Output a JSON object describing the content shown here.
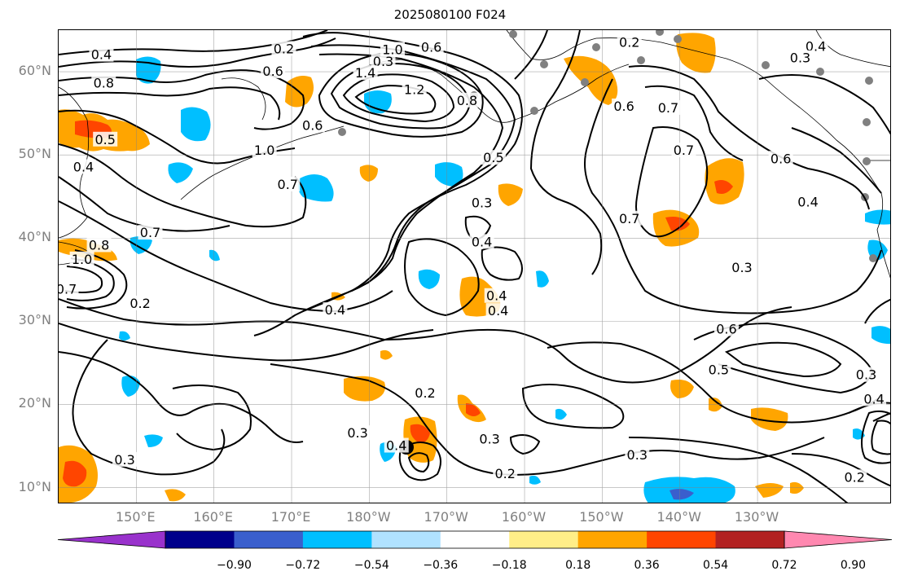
{
  "title": "2025080100 F024",
  "lat_labels": [
    {
      "text": "60°N",
      "lat": 60
    },
    {
      "text": "50°N",
      "lat": 50
    },
    {
      "text": "40°N",
      "lat": 40
    },
    {
      "text": "30°N",
      "lat": 30
    },
    {
      "text": "20°N",
      "lat": 20
    },
    {
      "text": "10°N",
      "lat": 10
    }
  ],
  "lon_labels": [
    {
      "text": "150°E",
      "lon": 150
    },
    {
      "text": "160°E",
      "lon": 160
    },
    {
      "text": "170°E",
      "lon": 170
    },
    {
      "text": "180°W",
      "lon": 180
    },
    {
      "text": "170°W",
      "lon": 190
    },
    {
      "text": "160°W",
      "lon": 200
    },
    {
      "text": "150°W",
      "lon": 210
    },
    {
      "text": "140°W",
      "lon": 220
    },
    {
      "text": "130°W",
      "lon": 230
    }
  ],
  "colorbar": {
    "ticks": [
      "−0.90",
      "−0.72",
      "−0.54",
      "−0.36",
      "−0.18",
      "0.18",
      "0.36",
      "0.54",
      "0.72",
      "0.90"
    ],
    "colors": [
      "#9932cc",
      "#00008b",
      "#3a5fcd",
      "#00bfff",
      "#b0e2ff",
      "#ffffff",
      "#ffee88",
      "#ffa500",
      "#ff4500",
      "#b22222",
      "#ff88b0"
    ]
  },
  "contour_labels": [
    {
      "text": "0.2",
      "lon": 169,
      "lat": 62.7
    },
    {
      "text": "0.4",
      "lon": 145.5,
      "lat": 62
    },
    {
      "text": "0.6",
      "lon": 167.6,
      "lat": 60
    },
    {
      "text": "0.8",
      "lon": 145.8,
      "lat": 58.6
    },
    {
      "text": "0.3",
      "lon": 181.8,
      "lat": 61.2
    },
    {
      "text": "1.4",
      "lon": 179.5,
      "lat": 59.8
    },
    {
      "text": "1.0",
      "lon": 183,
      "lat": 62.6
    },
    {
      "text": "0.6",
      "lon": 188,
      "lat": 62.9
    },
    {
      "text": "1.2",
      "lon": 185.8,
      "lat": 57.8
    },
    {
      "text": "0.8",
      "lon": 192.6,
      "lat": 56.5
    },
    {
      "text": "0.2",
      "lon": 213.5,
      "lat": 63.5
    },
    {
      "text": "0.6",
      "lon": 212.8,
      "lat": 55.8
    },
    {
      "text": "0.7",
      "lon": 218.5,
      "lat": 55.6
    },
    {
      "text": "0.4",
      "lon": 237.5,
      "lat": 63
    },
    {
      "text": "0.3",
      "lon": 235.5,
      "lat": 61.6
    },
    {
      "text": "0.6",
      "lon": 172.7,
      "lat": 53.5
    },
    {
      "text": "0.5",
      "lon": 146,
      "lat": 51.8
    },
    {
      "text": "1.0",
      "lon": 166.5,
      "lat": 50.5
    },
    {
      "text": "0.4",
      "lon": 143.2,
      "lat": 48.5
    },
    {
      "text": "0.5",
      "lon": 196,
      "lat": 49.6
    },
    {
      "text": "0.7",
      "lon": 220.5,
      "lat": 50.5
    },
    {
      "text": "0.6",
      "lon": 233,
      "lat": 49.5
    },
    {
      "text": "0.7",
      "lon": 169.5,
      "lat": 46.4
    },
    {
      "text": "0.3",
      "lon": 194.5,
      "lat": 44.2
    },
    {
      "text": "0.7",
      "lon": 213.5,
      "lat": 42.3
    },
    {
      "text": "0.4",
      "lon": 236.5,
      "lat": 44.3
    },
    {
      "text": "0.7",
      "lon": 151.8,
      "lat": 40.6
    },
    {
      "text": "0.8",
      "lon": 145.2,
      "lat": 39.1
    },
    {
      "text": "1.0",
      "lon": 143,
      "lat": 37.4
    },
    {
      "text": "0.4",
      "lon": 194.5,
      "lat": 39.5
    },
    {
      "text": "0.3",
      "lon": 228,
      "lat": 36.4
    },
    {
      "text": "0.7",
      "lon": 141,
      "lat": 33.8
    },
    {
      "text": "0.2",
      "lon": 150.5,
      "lat": 32.1
    },
    {
      "text": "0.4",
      "lon": 196.4,
      "lat": 33
    },
    {
      "text": "0.4",
      "lon": 196.6,
      "lat": 31.2
    },
    {
      "text": "0.4",
      "lon": 175.6,
      "lat": 31.3
    },
    {
      "text": "0.6",
      "lon": 226,
      "lat": 29
    },
    {
      "text": "0.5",
      "lon": 225,
      "lat": 24.1
    },
    {
      "text": "0.3",
      "lon": 244,
      "lat": 23.5
    },
    {
      "text": "0.2",
      "lon": 187.2,
      "lat": 21.3
    },
    {
      "text": "0.4",
      "lon": 245,
      "lat": 20.6
    },
    {
      "text": "0.3",
      "lon": 195.5,
      "lat": 15.8
    },
    {
      "text": "0.3",
      "lon": 178.5,
      "lat": 16.5
    },
    {
      "text": "0.4",
      "lon": 183.5,
      "lat": 15
    },
    {
      "text": "0.3",
      "lon": 148.5,
      "lat": 13.3
    },
    {
      "text": "0.3",
      "lon": 214.5,
      "lat": 13.9
    },
    {
      "text": "0.2",
      "lon": 197.5,
      "lat": 11.6
    },
    {
      "text": "0.2",
      "lon": 242.5,
      "lat": 11.2
    }
  ]
}
